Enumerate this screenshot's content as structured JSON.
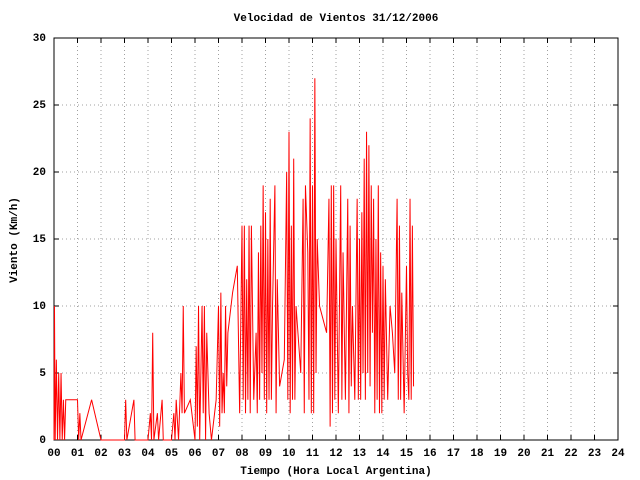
{
  "chart_data": {
    "type": "line",
    "title": "Velocidad de Vientos 31/12/2006",
    "xlabel": "Tiempo (Hora Local Argentina)",
    "ylabel": "Viento (Km/h)",
    "color": "#ff0000",
    "grid": true,
    "xlim": [
      0,
      24
    ],
    "ylim": [
      0,
      30
    ],
    "yticks": [
      0,
      5,
      10,
      15,
      20,
      25,
      30
    ],
    "xticks": [
      {
        "value": 0,
        "label": "00"
      },
      {
        "value": 1,
        "label": "01"
      },
      {
        "value": 2,
        "label": "02"
      },
      {
        "value": 3,
        "label": "03"
      },
      {
        "value": 4,
        "label": "04"
      },
      {
        "value": 5,
        "label": "05"
      },
      {
        "value": 6,
        "label": "06"
      },
      {
        "value": 7,
        "label": "07"
      },
      {
        "value": 8,
        "label": "08"
      },
      {
        "value": 9,
        "label": "09"
      },
      {
        "value": 10,
        "label": "10"
      },
      {
        "value": 11,
        "label": "11"
      },
      {
        "value": 12,
        "label": "12"
      },
      {
        "value": 13,
        "label": "13"
      },
      {
        "value": 14,
        "label": "14"
      },
      {
        "value": 15,
        "label": "15"
      },
      {
        "value": 16,
        "label": "16"
      },
      {
        "value": 17,
        "label": "17"
      },
      {
        "value": 18,
        "label": "18"
      },
      {
        "value": 19,
        "label": "19"
      },
      {
        "value": 20,
        "label": "20"
      },
      {
        "value": 21,
        "label": "21"
      },
      {
        "value": 22,
        "label": "22"
      },
      {
        "value": 23,
        "label": "23"
      },
      {
        "value": 24,
        "label": "24"
      }
    ],
    "x": [
      0.0,
      0.02,
      0.05,
      0.1,
      0.15,
      0.2,
      0.25,
      0.3,
      0.35,
      0.4,
      0.45,
      0.5,
      0.6,
      0.9,
      1.0,
      1.05,
      1.1,
      1.15,
      1.6,
      2.0,
      3.0,
      3.05,
      3.1,
      3.4,
      3.45,
      4.0,
      4.1,
      4.15,
      4.2,
      4.25,
      4.4,
      4.45,
      4.6,
      4.65,
      5.0,
      5.1,
      5.15,
      5.2,
      5.3,
      5.4,
      5.45,
      5.5,
      5.55,
      5.8,
      6.0,
      6.05,
      6.1,
      6.15,
      6.2,
      6.3,
      6.35,
      6.4,
      6.45,
      6.5,
      6.6,
      6.7,
      6.9,
      7.0,
      7.05,
      7.1,
      7.15,
      7.2,
      7.25,
      7.3,
      7.35,
      7.4,
      7.6,
      7.8,
      7.9,
      8.0,
      8.05,
      8.1,
      8.15,
      8.2,
      8.25,
      8.3,
      8.35,
      8.4,
      8.5,
      8.6,
      8.65,
      8.7,
      8.75,
      8.8,
      8.85,
      8.9,
      8.95,
      9.0,
      9.05,
      9.1,
      9.15,
      9.2,
      9.25,
      9.3,
      9.4,
      9.45,
      9.5,
      9.6,
      9.8,
      9.9,
      9.95,
      10.0,
      10.05,
      10.1,
      10.15,
      10.2,
      10.25,
      10.3,
      10.5,
      10.6,
      10.65,
      10.7,
      10.8,
      10.85,
      10.9,
      10.95,
      11.0,
      11.05,
      11.1,
      11.15,
      11.2,
      11.3,
      11.6,
      11.7,
      11.75,
      11.8,
      11.85,
      11.9,
      11.95,
      12.0,
      12.1,
      12.2,
      12.25,
      12.3,
      12.4,
      12.5,
      12.55,
      12.6,
      12.65,
      12.7,
      12.8,
      12.9,
      12.95,
      13.0,
      13.05,
      13.1,
      13.15,
      13.2,
      13.25,
      13.3,
      13.35,
      13.4,
      13.45,
      13.5,
      13.55,
      13.6,
      13.65,
      13.7,
      13.75,
      13.8,
      13.85,
      13.9,
      13.95,
      14.0,
      14.05,
      14.1,
      14.2,
      14.3,
      14.4,
      14.5,
      14.6,
      14.65,
      14.7,
      14.75,
      14.8,
      14.9,
      15.0,
      15.05,
      15.1,
      15.15,
      15.2,
      15.25,
      15.3
    ],
    "values": [
      0,
      10,
      0,
      6,
      0,
      5,
      0,
      5,
      0,
      3,
      0,
      3,
      3,
      3,
      3,
      0,
      2,
      0,
      3,
      0,
      0,
      3,
      0,
      3,
      0,
      0,
      2,
      0,
      8,
      0,
      2,
      0,
      3,
      0,
      0,
      2,
      0,
      3,
      0,
      5,
      2,
      10,
      2,
      3,
      0,
      7,
      1,
      10,
      0,
      10,
      2,
      10,
      0,
      8,
      2,
      0,
      3,
      10,
      1,
      11,
      2,
      5,
      2,
      10,
      4,
      8,
      11,
      13,
      2,
      16,
      3,
      16,
      2,
      12,
      3,
      16,
      2,
      16,
      3,
      8,
      2,
      14,
      3,
      16,
      5,
      19,
      3,
      17,
      2,
      15,
      3,
      18,
      3,
      10,
      19,
      2,
      12,
      4,
      6,
      20,
      3,
      23,
      2,
      16,
      3,
      21,
      3,
      10,
      5,
      18,
      2,
      19,
      14,
      3,
      24,
      2,
      19,
      2,
      27,
      5,
      15,
      10,
      8,
      18,
      1,
      19,
      2,
      19,
      3,
      15,
      2,
      19,
      3,
      14,
      3,
      18,
      2,
      16,
      4,
      10,
      3,
      18,
      3,
      15,
      3,
      17,
      5,
      21,
      3,
      23,
      5,
      22,
      4,
      19,
      8,
      18,
      2,
      15,
      3,
      19,
      2,
      14,
      2,
      13,
      3,
      12,
      3,
      10,
      8,
      5,
      18,
      3,
      16,
      3,
      11,
      2,
      13,
      5,
      3,
      18,
      3,
      16,
      4
    ]
  }
}
